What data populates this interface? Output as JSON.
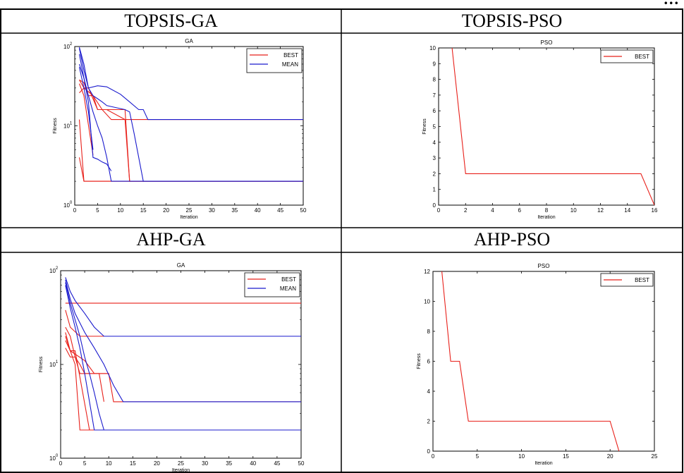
{
  "page": {
    "heading_fragment": "...",
    "cells": [
      {
        "title": "TOPSIS-GA"
      },
      {
        "title": "TOPSIS-PSO"
      },
      {
        "title": "AHP-GA"
      },
      {
        "title": "AHP-PSO"
      }
    ]
  },
  "colors": {
    "best": "#e8211b",
    "mean": "#1a1acd"
  },
  "chart_data": [
    {
      "type": "line",
      "title": "GA",
      "xlabel": "Iteration",
      "ylabel": "Fitness",
      "xlim": [
        0,
        50
      ],
      "ylim": [
        1,
        100
      ],
      "yscale": "log",
      "xticks": [
        0,
        5,
        10,
        15,
        20,
        25,
        30,
        35,
        40,
        45,
        50
      ],
      "yticks": [
        1,
        10,
        100
      ],
      "ytick_labels": [
        [
          "10",
          "0"
        ],
        [
          "10",
          "1"
        ],
        [
          "10",
          "2"
        ]
      ],
      "legend": {
        "position": "top-right",
        "entries": [
          "BEST",
          "MEAN"
        ]
      },
      "series": [
        {
          "name": "BEST",
          "color": "#e8211b",
          "x": [
            1,
            2,
            3,
            5,
            6,
            8,
            9,
            50
          ],
          "y": [
            38,
            30,
            30,
            16,
            16,
            12,
            12,
            12
          ]
        },
        {
          "name": "BEST",
          "color": "#e8211b",
          "x": [
            1,
            2,
            3,
            4,
            6,
            7,
            11,
            12,
            50
          ],
          "y": [
            38,
            35,
            24,
            24,
            16,
            16,
            12,
            2,
            2
          ]
        },
        {
          "name": "BEST",
          "color": "#e8211b",
          "x": [
            1,
            2,
            4,
            5,
            11,
            12,
            50
          ],
          "y": [
            26,
            30,
            24,
            16,
            16,
            2,
            2
          ]
        },
        {
          "name": "BEST",
          "color": "#e8211b",
          "x": [
            1,
            2,
            50
          ],
          "y": [
            4,
            2,
            2
          ]
        },
        {
          "name": "BEST",
          "color": "#e8211b",
          "x": [
            1,
            2,
            50
          ],
          "y": [
            12,
            2,
            2
          ]
        },
        {
          "name": "BEST",
          "color": "#e8211b",
          "x": [
            1,
            2,
            4
          ],
          "y": [
            34,
            24,
            4.3
          ]
        },
        {
          "name": "MEAN",
          "color": "#1a1acd",
          "x": [
            1,
            2,
            3,
            5,
            7,
            10,
            12,
            14,
            15,
            16,
            50
          ],
          "y": [
            98,
            60,
            30,
            32,
            31,
            25,
            20,
            16,
            16,
            12,
            12
          ]
        },
        {
          "name": "MEAN",
          "color": "#1a1acd",
          "x": [
            1,
            2,
            3,
            4,
            5,
            6,
            7,
            9,
            11,
            12,
            13,
            15,
            50
          ],
          "y": [
            95,
            50,
            30,
            24,
            22,
            20,
            18,
            17,
            16,
            15,
            8,
            2,
            2
          ]
        },
        {
          "name": "MEAN",
          "color": "#1a1acd",
          "x": [
            1,
            2,
            3,
            4,
            5,
            6,
            7,
            8,
            50
          ],
          "y": [
            80,
            40,
            24,
            15,
            10,
            7,
            4,
            2,
            2
          ]
        },
        {
          "name": "MEAN",
          "color": "#1a1acd",
          "x": [
            1,
            2,
            3,
            4,
            5,
            6,
            7,
            8
          ],
          "y": [
            60,
            40,
            20,
            4,
            3.8,
            3.5,
            3.3,
            2.7
          ]
        },
        {
          "name": "MEAN",
          "color": "#1a1acd",
          "x": [
            1,
            2,
            3,
            4
          ],
          "y": [
            55,
            30,
            15,
            5
          ]
        }
      ]
    },
    {
      "type": "line",
      "title": "PSO",
      "xlabel": "Iteration",
      "ylabel": "Fitness",
      "xlim": [
        0,
        16
      ],
      "ylim": [
        0,
        10
      ],
      "yscale": "linear",
      "xticks": [
        0,
        2,
        4,
        6,
        8,
        10,
        12,
        14,
        16
      ],
      "yticks": [
        0,
        1,
        2,
        3,
        4,
        5,
        6,
        7,
        8,
        9,
        10
      ],
      "legend": {
        "position": "top-right",
        "entries": [
          "BEST"
        ]
      },
      "series": [
        {
          "name": "BEST",
          "color": "#e8211b",
          "x": [
            1,
            2,
            15,
            16
          ],
          "y": [
            10,
            2,
            2,
            0
          ]
        }
      ]
    },
    {
      "type": "line",
      "title": "GA",
      "xlabel": "Iteration",
      "ylabel": "Fitness",
      "xlim": [
        0,
        50
      ],
      "ylim": [
        1,
        100
      ],
      "yscale": "log",
      "xticks": [
        0,
        5,
        10,
        15,
        20,
        25,
        30,
        35,
        40,
        45,
        50
      ],
      "yticks": [
        1,
        10,
        100
      ],
      "ytick_labels": [
        [
          "10",
          "0"
        ],
        [
          "10",
          "1"
        ],
        [
          "10",
          "2"
        ]
      ],
      "legend": {
        "position": "top-right",
        "entries": [
          "BEST",
          "MEAN"
        ]
      },
      "series": [
        {
          "name": "BEST",
          "color": "#e8211b",
          "x": [
            1,
            2,
            50
          ],
          "y": [
            45,
            45,
            45
          ]
        },
        {
          "name": "BEST",
          "color": "#e8211b",
          "x": [
            1,
            2,
            4,
            5,
            50
          ],
          "y": [
            38,
            25,
            20,
            20,
            20
          ]
        },
        {
          "name": "BEST",
          "color": "#e8211b",
          "x": [
            1,
            2,
            3,
            4,
            5,
            10,
            11,
            50
          ],
          "y": [
            25,
            20,
            12,
            10,
            8,
            8,
            4,
            4
          ]
        },
        {
          "name": "BEST",
          "color": "#e8211b",
          "x": [
            1,
            2,
            3,
            4,
            50
          ],
          "y": [
            20,
            14,
            10,
            2,
            2
          ]
        },
        {
          "name": "BEST",
          "color": "#e8211b",
          "x": [
            1,
            2,
            3,
            6,
            50
          ],
          "y": [
            18,
            14,
            14,
            2,
            2
          ]
        },
        {
          "name": "BEST",
          "color": "#e8211b",
          "x": [
            1,
            2,
            3,
            4,
            6,
            7,
            9,
            10
          ],
          "y": [
            15,
            12,
            12,
            8,
            8,
            8,
            8,
            8
          ]
        },
        {
          "name": "BEST",
          "color": "#e8211b",
          "x": [
            1,
            2,
            5,
            7,
            8,
            9
          ],
          "y": [
            22,
            14,
            11,
            8,
            8,
            4
          ]
        },
        {
          "name": "MEAN",
          "color": "#1a1acd",
          "x": [
            1,
            2,
            3,
            5,
            7,
            9,
            50
          ],
          "y": [
            85,
            60,
            48,
            35,
            25,
            20,
            20
          ]
        },
        {
          "name": "MEAN",
          "color": "#1a1acd",
          "x": [
            1,
            2,
            3,
            5,
            7,
            9,
            11,
            13,
            50
          ],
          "y": [
            80,
            50,
            35,
            22,
            15,
            10,
            6,
            4,
            4
          ]
        },
        {
          "name": "MEAN",
          "color": "#1a1acd",
          "x": [
            1,
            2,
            3,
            4,
            5,
            6,
            7,
            8,
            9,
            50
          ],
          "y": [
            75,
            45,
            30,
            20,
            12,
            8,
            5,
            3,
            2,
            2
          ]
        },
        {
          "name": "MEAN",
          "color": "#1a1acd",
          "x": [
            1,
            2,
            3,
            4,
            5,
            6,
            7,
            50
          ],
          "y": [
            70,
            40,
            25,
            15,
            8,
            4,
            2,
            2
          ]
        }
      ]
    },
    {
      "type": "line",
      "title": "PSO",
      "xlabel": "Iteration",
      "ylabel": "Fitness",
      "xlim": [
        0,
        25
      ],
      "ylim": [
        0,
        12
      ],
      "yscale": "linear",
      "xticks": [
        0,
        5,
        10,
        15,
        20,
        25
      ],
      "yticks": [
        0,
        2,
        4,
        6,
        8,
        10,
        12
      ],
      "legend": {
        "position": "top-right",
        "entries": [
          "BEST"
        ]
      },
      "series": [
        {
          "name": "BEST",
          "color": "#e8211b",
          "x": [
            1,
            2,
            3,
            4,
            20,
            21
          ],
          "y": [
            12,
            6,
            6,
            2,
            2,
            0
          ]
        }
      ]
    }
  ]
}
